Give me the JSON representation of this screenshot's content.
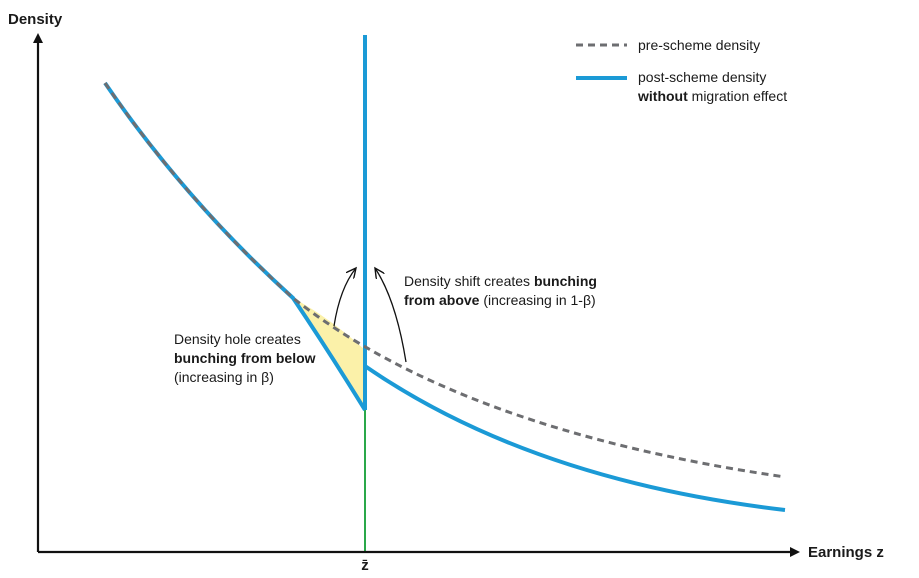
{
  "axes": {
    "y_label": "Density",
    "x_label": "Earnings z",
    "x_tick_label": "z̄"
  },
  "legend": {
    "pre": "pre-scheme density",
    "post_line1": "post-scheme density",
    "post_line2_bold": "without",
    "post_line2_rest": " migration effect"
  },
  "annotations": {
    "above": {
      "line1_normal": "Density shift creates ",
      "line1_bold": "bunching",
      "line2_bold": "from above",
      "line2_normal": " (increasing in 1-β)"
    },
    "below": {
      "line1": "Density hole creates",
      "line2_bold": "bunching from below",
      "line3": "(increasing in β)"
    }
  },
  "colors": {
    "post_curve": "#1b9ad6",
    "pre_curve": "#6d6e71",
    "threshold_line": "#2aa84a",
    "hole_fill": "#fbf1a9",
    "axis": "#111111"
  }
}
